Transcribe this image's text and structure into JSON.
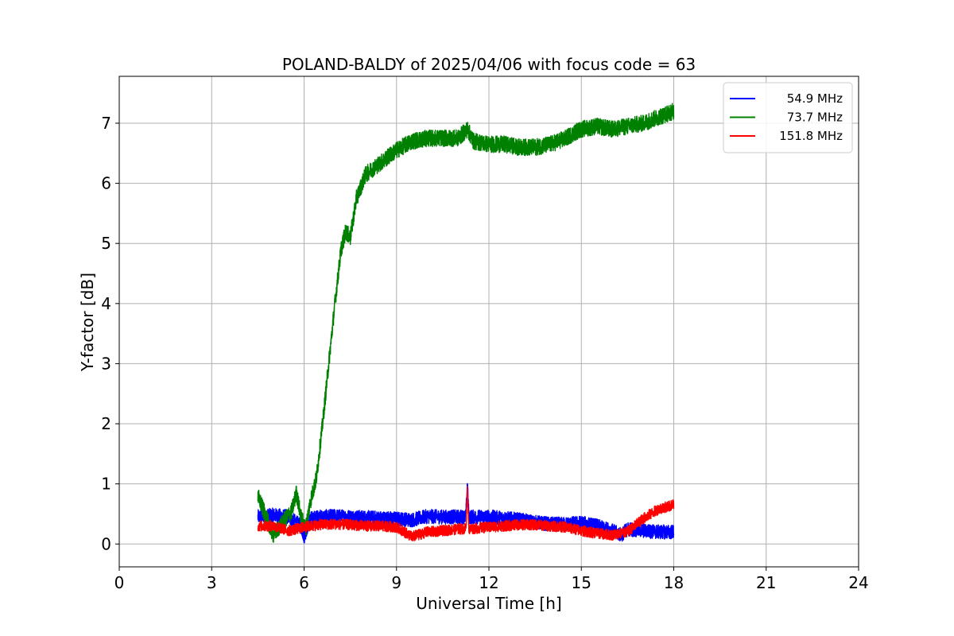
{
  "chart_data": {
    "type": "line",
    "title": "POLAND-BALDY of 2025/04/06 with focus code = 63",
    "xlabel": "Universal Time [h]",
    "ylabel": "Y-factor [dB]",
    "xlim": [
      0,
      24
    ],
    "ylim": [
      -0.38,
      7.78
    ],
    "xticks": [
      0,
      3,
      6,
      9,
      12,
      15,
      18,
      21,
      24
    ],
    "yticks": [
      0,
      1,
      2,
      3,
      4,
      5,
      6,
      7
    ],
    "grid": true,
    "legend_position": "top-right",
    "series": [
      {
        "name": "54.9 MHz",
        "color": "#0000ff",
        "noise": 0.12,
        "x": [
          4.5,
          5.0,
          5.5,
          5.9,
          6.0,
          6.2,
          6.5,
          7.0,
          8.0,
          9.0,
          9.5,
          10.0,
          10.5,
          11.0,
          11.25,
          11.3,
          11.35,
          12.0,
          12.5,
          13.0,
          13.5,
          14.0,
          14.5,
          15.0,
          15.5,
          16.0,
          16.3,
          16.5,
          17.0,
          17.5,
          18.0
        ],
        "y": [
          0.45,
          0.48,
          0.45,
          0.3,
          0.12,
          0.42,
          0.45,
          0.46,
          0.44,
          0.42,
          0.4,
          0.46,
          0.45,
          0.45,
          0.45,
          1.0,
          0.45,
          0.45,
          0.43,
          0.4,
          0.36,
          0.33,
          0.33,
          0.35,
          0.3,
          0.22,
          0.15,
          0.25,
          0.22,
          0.2,
          0.2
        ]
      },
      {
        "name": "73.7 MHz",
        "color": "#008000",
        "noise": 0.14,
        "x": [
          4.5,
          4.8,
          5.0,
          5.3,
          5.6,
          5.75,
          5.9,
          6.05,
          6.2,
          6.4,
          6.6,
          6.8,
          7.0,
          7.2,
          7.35,
          7.5,
          7.7,
          8.0,
          8.5,
          9.0,
          9.5,
          10.0,
          10.5,
          11.0,
          11.3,
          11.5,
          12.0,
          12.5,
          13.0,
          13.5,
          14.0,
          14.5,
          14.8,
          15.0,
          15.5,
          16.0,
          16.5,
          17.0,
          17.5,
          18.0
        ],
        "y": [
          0.8,
          0.4,
          0.15,
          0.35,
          0.55,
          0.85,
          0.45,
          0.25,
          0.7,
          1.1,
          2.0,
          3.0,
          4.0,
          4.9,
          5.2,
          5.1,
          5.75,
          6.15,
          6.35,
          6.55,
          6.7,
          6.75,
          6.75,
          6.75,
          6.9,
          6.7,
          6.65,
          6.65,
          6.6,
          6.6,
          6.65,
          6.75,
          6.85,
          6.9,
          6.95,
          6.9,
          6.95,
          7.0,
          7.1,
          7.2
        ]
      },
      {
        "name": "151.8 MHz",
        "color": "#ff0000",
        "noise": 0.09,
        "x": [
          4.5,
          5.0,
          5.5,
          6.0,
          6.5,
          7.0,
          7.5,
          8.0,
          8.5,
          9.0,
          9.5,
          10.0,
          10.5,
          11.0,
          11.25,
          11.3,
          11.35,
          12.0,
          12.5,
          13.0,
          13.5,
          14.0,
          14.5,
          15.0,
          15.5,
          16.0,
          16.5,
          17.0,
          17.5,
          18.0
        ],
        "y": [
          0.3,
          0.3,
          0.22,
          0.28,
          0.32,
          0.33,
          0.32,
          0.3,
          0.3,
          0.28,
          0.12,
          0.2,
          0.22,
          0.25,
          0.25,
          0.9,
          0.25,
          0.28,
          0.3,
          0.32,
          0.32,
          0.3,
          0.28,
          0.22,
          0.18,
          0.15,
          0.2,
          0.42,
          0.58,
          0.65
        ]
      }
    ]
  }
}
